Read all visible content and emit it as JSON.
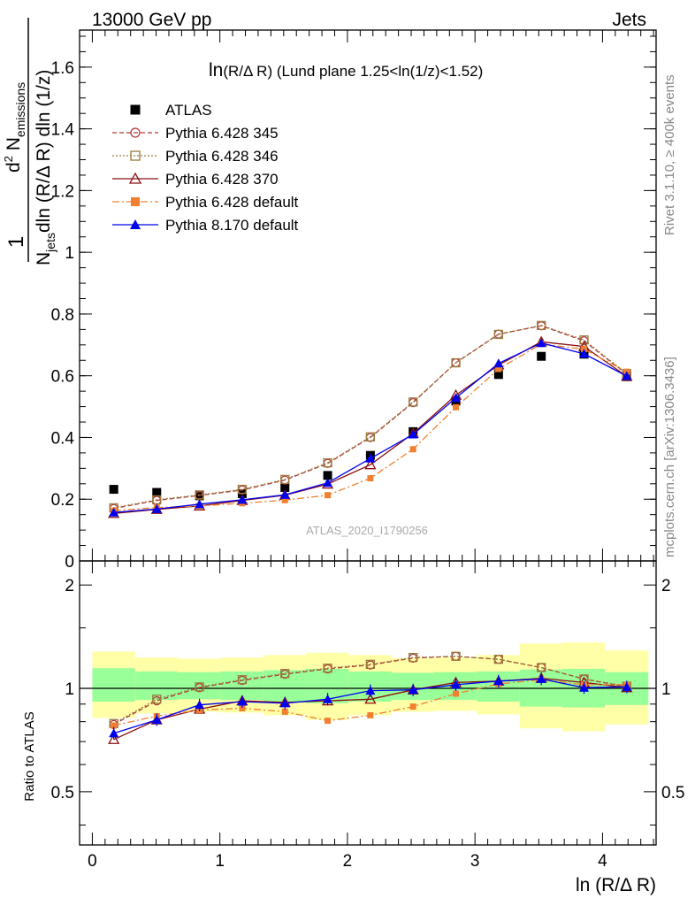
{
  "header": {
    "left": "13000 GeV pp",
    "right": "Jets"
  },
  "side_labels": {
    "rivet": "Rivet 3.1.10, ≥ 400k events",
    "mcplots": "mcplots.cern.ch [arXiv:1306.3436]"
  },
  "chart_data": [
    {
      "type": "scatter",
      "title": "ln(R/Δ R) (Lund plane 1.25<ln(1/z)<1.52)",
      "title_parts": {
        "main": "ln",
        "rest": "(R/Δ R) (Lund plane 1.25<ln(1/z)<1.52)"
      },
      "ylabel": "1/N_jets dln (R/Δ R) dln (1/z) · d² N_emissions",
      "ylabel_parts": {
        "one": "1",
        "N": "N",
        "jets": "jets",
        "den_rest": "dln (R/Δ R) dln (1/z)",
        "d2": "d",
        "sup2": "2",
        "Nem": "N",
        "emissions": "emissions"
      },
      "xlim": [
        -0.1,
        4.42
      ],
      "ylim": [
        0,
        1.72
      ],
      "yticks": [
        0,
        0.2,
        0.4,
        0.6,
        0.8,
        1,
        1.2,
        1.4,
        1.6
      ],
      "ytick_labels": [
        "0",
        "0.2",
        "0.4",
        "0.6",
        "0.8",
        "1",
        "1.2",
        "1.4",
        "1.6"
      ],
      "watermark": "ATLAS_2020_I1790256",
      "legend_position": "top-left",
      "x": [
        0.168,
        0.505,
        0.84,
        1.175,
        1.51,
        1.845,
        2.18,
        2.515,
        2.85,
        3.185,
        3.52,
        3.855,
        4.19
      ],
      "series": [
        {
          "name": "ATLAS",
          "key": "atlas",
          "color": "#000000",
          "marker": "square-filled",
          "line": "none",
          "values": [
            0.232,
            0.222,
            0.211,
            0.218,
            0.238,
            0.277,
            0.342,
            0.419,
            0.518,
            0.604,
            0.663,
            0.67,
            0.597
          ]
        },
        {
          "name": "Pythia 6.428 345",
          "key": "p345",
          "color": "#b03a3a",
          "marker": "circle-open",
          "line": "dashed",
          "values": [
            0.17,
            0.196,
            0.212,
            0.23,
            0.262,
            0.316,
            0.4,
            0.513,
            0.642,
            0.735,
            0.762,
            0.713,
            0.605
          ]
        },
        {
          "name": "Pythia 6.428 346",
          "key": "p346",
          "color": "#9b7a3f",
          "marker": "square-open",
          "line": "dotted",
          "values": [
            0.172,
            0.198,
            0.214,
            0.232,
            0.264,
            0.318,
            0.402,
            0.515,
            0.642,
            0.734,
            0.763,
            0.716,
            0.607
          ]
        },
        {
          "name": "Pythia 6.428 370",
          "key": "p370",
          "color": "#8b1010",
          "marker": "triangle-open",
          "line": "solid",
          "values": [
            0.154,
            0.167,
            0.178,
            0.196,
            0.213,
            0.249,
            0.312,
            0.413,
            0.537,
            0.635,
            0.71,
            0.695,
            0.598
          ]
        },
        {
          "name": "Pythia 6.428 default",
          "key": "p6def",
          "color": "#f08030",
          "marker": "square-filled",
          "line": "dashdot",
          "values": [
            0.163,
            0.173,
            0.178,
            0.187,
            0.197,
            0.213,
            0.268,
            0.362,
            0.498,
            0.622,
            0.703,
            0.686,
            0.613
          ]
        },
        {
          "name": "Pythia 8.170 default",
          "key": "p8def",
          "color": "#0000ee",
          "marker": "triangle-filled",
          "line": "solid",
          "values": [
            0.157,
            0.168,
            0.184,
            0.198,
            0.214,
            0.253,
            0.332,
            0.41,
            0.528,
            0.64,
            0.706,
            0.671,
            0.599
          ]
        }
      ]
    },
    {
      "type": "scatter",
      "ylabel": "Ratio to ATLAS",
      "xlabel": "ln (R/Δ R)",
      "xlim": [
        -0.1,
        4.42
      ],
      "xticks": [
        0,
        1,
        2,
        3,
        4
      ],
      "xtick_labels": [
        "0",
        "1",
        "2",
        "3",
        "4"
      ],
      "ylim": [
        0.35,
        2.35
      ],
      "yscale": "log",
      "yticks": [
        0.5,
        1,
        2
      ],
      "ytick_labels": [
        "0.5",
        "1",
        "2"
      ],
      "band_edges": [
        0,
        0.335,
        0.67,
        1.005,
        1.34,
        1.675,
        2.01,
        2.345,
        2.68,
        3.015,
        3.35,
        3.685,
        4.02,
        4.36
      ],
      "band_inner": [
        [
          0.915,
          1.145
        ],
        [
          0.925,
          1.12
        ],
        [
          0.93,
          1.115
        ],
        [
          0.925,
          1.12
        ],
        [
          0.915,
          1.13
        ],
        [
          0.905,
          1.14
        ],
        [
          0.915,
          1.12
        ],
        [
          0.925,
          1.11
        ],
        [
          0.925,
          1.115
        ],
        [
          0.915,
          1.12
        ],
        [
          0.885,
          1.135
        ],
        [
          0.88,
          1.14
        ],
        [
          0.895,
          1.115
        ]
      ],
      "band_outer": [
        [
          0.82,
          1.28
        ],
        [
          0.845,
          1.23
        ],
        [
          0.855,
          1.22
        ],
        [
          0.85,
          1.23
        ],
        [
          0.835,
          1.25
        ],
        [
          0.81,
          1.27
        ],
        [
          0.835,
          1.25
        ],
        [
          0.855,
          1.225
        ],
        [
          0.86,
          1.23
        ],
        [
          0.84,
          1.25
        ],
        [
          0.765,
          1.35
        ],
        [
          0.75,
          1.36
        ],
        [
          0.785,
          1.29
        ]
      ],
      "series": [
        {
          "name": "Pythia 6.428 345",
          "key": "p345",
          "values": [
            0.785,
            0.92,
            1.005,
            1.055,
            1.1,
            1.14,
            1.17,
            1.225,
            1.24,
            1.215,
            1.15,
            1.065,
            1.01
          ]
        },
        {
          "name": "Pythia 6.428 346",
          "key": "p346",
          "values": [
            0.79,
            0.93,
            1.01,
            1.06,
            1.105,
            1.145,
            1.175,
            1.23,
            1.24,
            1.215,
            1.15,
            1.065,
            1.015
          ]
        },
        {
          "name": "Pythia 6.428 370",
          "key": "p370",
          "values": [
            0.71,
            0.81,
            0.87,
            0.92,
            0.91,
            0.92,
            0.93,
            0.99,
            1.04,
            1.05,
            1.07,
            1.04,
            1.005
          ]
        },
        {
          "name": "Pythia 6.428 default",
          "key": "p6def",
          "values": [
            0.78,
            0.83,
            0.865,
            0.875,
            0.855,
            0.805,
            0.835,
            0.885,
            0.965,
            1.03,
            1.06,
            1.025,
            1.025
          ]
        },
        {
          "name": "Pythia 8.170 default",
          "key": "p8def",
          "values": [
            0.74,
            0.81,
            0.895,
            0.915,
            0.905,
            0.93,
            0.985,
            0.99,
            1.025,
            1.05,
            1.065,
            1.005,
            1.01
          ]
        }
      ]
    }
  ]
}
